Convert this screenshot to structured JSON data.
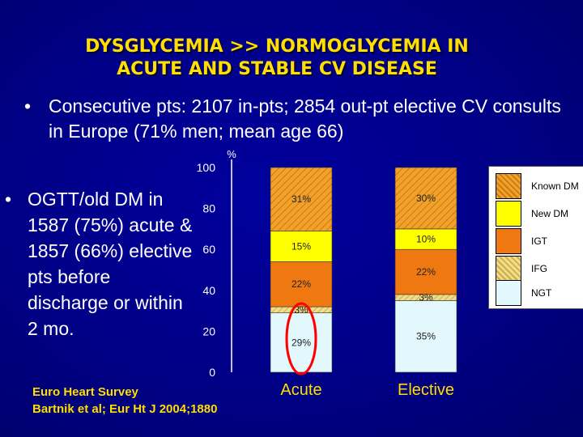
{
  "title": {
    "line1": "DYSGLYCEMIA >> NORMOGLYCEMIA IN",
    "line2": "ACUTE AND STABLE CV DISEASE"
  },
  "bullet1": {
    "marker": "•",
    "text": "Consecutive pts: 2107 in-pts; 2854 out-pt elective CV consults in Europe (71% men; mean age 66)"
  },
  "bullet2": {
    "marker": "•",
    "text": "OGTT/old DM  in 1587 (75%) acute & 1857 (66%) elective pts before discharge or within 2 mo."
  },
  "source": {
    "line1": "Euro Heart Survey",
    "line2": "Bartnik et al; Eur Ht J 2004;1880"
  },
  "colors": {
    "background": "#000086",
    "title": "#ffde00",
    "known_dm": "#f2a12a",
    "new_dm": "#ffff00",
    "igt": "#f07810",
    "ifg": "#e9d27a",
    "ngt": "#e2f8fc",
    "highlight_circle": "#ff0000"
  },
  "chart_data": {
    "type": "bar",
    "stacked": true,
    "y_unit_label": "%",
    "ylim": [
      0,
      100
    ],
    "yticks": [
      "0",
      "20",
      "40",
      "60",
      "80",
      "100"
    ],
    "categories": [
      "Acute",
      "Elective"
    ],
    "series": [
      {
        "name": "NGT",
        "values": [
          29,
          35
        ],
        "labels": [
          "29%",
          "35%"
        ]
      },
      {
        "name": "IFG",
        "values": [
          3,
          3
        ],
        "labels": [
          "3%",
          "3%"
        ]
      },
      {
        "name": "IGT",
        "values": [
          22,
          22
        ],
        "labels": [
          "22%",
          "22%"
        ]
      },
      {
        "name": "New DM",
        "values": [
          15,
          10
        ],
        "labels": [
          "15%",
          "10%"
        ]
      },
      {
        "name": "Known DM",
        "values": [
          31,
          30
        ],
        "labels": [
          "31%",
          "30%"
        ]
      }
    ],
    "legend": [
      "Known DM",
      "New DM",
      "IGT",
      "IFG",
      "NGT"
    ],
    "legend_position": "right",
    "annotation": "red ellipse around the IFG and NGT segments of the Acute bar"
  }
}
